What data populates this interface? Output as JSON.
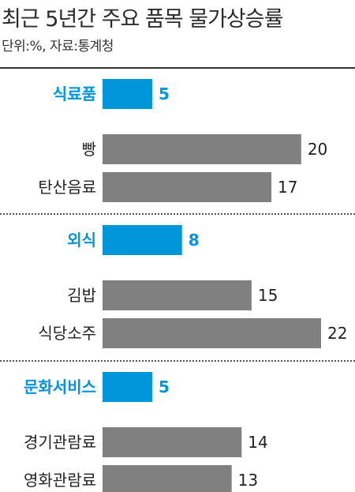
{
  "title": "최근 5년간 주요 품목 물가상승률",
  "subtitle": "단위:%, 자료:통계청",
  "colors": {
    "category": "#0096d9",
    "item": "#808080",
    "category_label": "#0096d9",
    "item_label": "#222222"
  },
  "chart_data": {
    "type": "bar",
    "orientation": "horizontal",
    "xlim": [
      0,
      22
    ],
    "grid": false,
    "legend": "none",
    "groups": [
      {
        "category": "식료품",
        "value": 5,
        "items": [
          {
            "label": "빵",
            "value": 20
          },
          {
            "label": "탄산음료",
            "value": 17
          }
        ]
      },
      {
        "category": "외식",
        "value": 8,
        "items": [
          {
            "label": "김밥",
            "value": 15
          },
          {
            "label": "식당소주",
            "value": 22
          }
        ]
      },
      {
        "category": "문화서비스",
        "value": 5,
        "items": [
          {
            "label": "경기관람료",
            "value": 14
          },
          {
            "label": "영화관람료",
            "value": 13
          }
        ]
      }
    ]
  }
}
